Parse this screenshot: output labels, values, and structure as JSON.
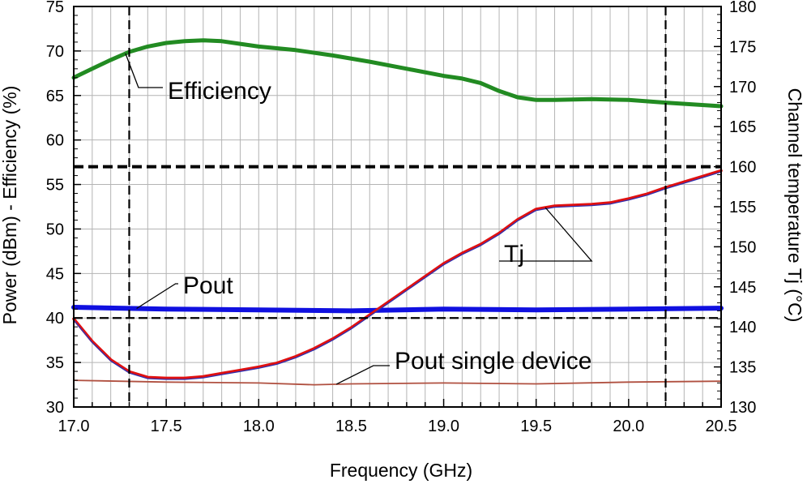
{
  "chart_data": {
    "type": "line",
    "xlabel": "Frequency (GHz)",
    "ylabel_left": "Power (dBm) - Efficiency (%)",
    "ylabel_right": "Channel temperature Tj (°C)",
    "xlim": [
      17.0,
      20.5
    ],
    "ylim_left": [
      30,
      75
    ],
    "ylim_right": [
      130,
      180
    ],
    "x_ticks": [
      "17.0",
      "17.5",
      "18.0",
      "18.5",
      "19.0",
      "19.5",
      "20.0",
      "20.5"
    ],
    "y_left_ticks": [
      "30",
      "35",
      "40",
      "45",
      "50",
      "55",
      "60",
      "65",
      "70",
      "75"
    ],
    "y_right_ticks": [
      "130",
      "135",
      "140",
      "145",
      "150",
      "155",
      "160",
      "165",
      "170",
      "175",
      "180"
    ],
    "grid": true,
    "series": [
      {
        "name": "Efficiency",
        "axis": "left",
        "color": "#228b22",
        "x": [
          17.0,
          17.1,
          17.2,
          17.3,
          17.4,
          17.5,
          17.6,
          17.7,
          17.8,
          17.9,
          18.0,
          18.2,
          18.4,
          18.6,
          18.8,
          19.0,
          19.1,
          19.2,
          19.3,
          19.4,
          19.5,
          19.6,
          19.8,
          20.0,
          20.2,
          20.5
        ],
        "y": [
          67.0,
          68.0,
          69.0,
          69.9,
          70.5,
          70.9,
          71.1,
          71.2,
          71.1,
          70.8,
          70.5,
          70.1,
          69.5,
          68.8,
          68.0,
          67.2,
          66.9,
          66.4,
          65.5,
          64.8,
          64.5,
          64.5,
          64.6,
          64.5,
          64.2,
          63.8
        ]
      },
      {
        "name": "Pout",
        "axis": "left",
        "color": "#1010e0",
        "x": [
          17.0,
          17.5,
          18.0,
          18.5,
          19.0,
          19.5,
          20.0,
          20.5
        ],
        "y": [
          41.2,
          41.0,
          40.9,
          40.8,
          41.0,
          40.9,
          41.0,
          41.1
        ]
      },
      {
        "name": "Tj",
        "axis": "right",
        "color": "#e01010",
        "x": [
          17.0,
          17.1,
          17.2,
          17.3,
          17.4,
          17.5,
          17.6,
          17.7,
          17.8,
          17.9,
          18.0,
          18.1,
          18.2,
          18.3,
          18.4,
          18.5,
          18.6,
          18.7,
          18.8,
          18.9,
          19.0,
          19.1,
          19.2,
          19.3,
          19.4,
          19.5,
          19.6,
          19.7,
          19.8,
          19.9,
          20.0,
          20.1,
          20.2,
          20.3,
          20.4,
          20.5
        ],
        "y": [
          141.0,
          138.2,
          135.9,
          134.4,
          133.7,
          133.6,
          133.6,
          133.8,
          134.2,
          134.6,
          135.0,
          135.5,
          136.3,
          137.3,
          138.5,
          139.9,
          141.5,
          143.1,
          144.7,
          146.3,
          147.9,
          149.2,
          150.3,
          151.7,
          153.4,
          154.7,
          155.1,
          155.2,
          155.3,
          155.5,
          156.0,
          156.6,
          157.4,
          158.1,
          158.8,
          159.5
        ]
      },
      {
        "name": "Pout single device",
        "axis": "left",
        "color": "#b05040",
        "x": [
          17.0,
          17.5,
          18.0,
          18.3,
          18.5,
          19.0,
          19.5,
          20.0,
          20.5
        ],
        "y": [
          33.0,
          32.8,
          32.7,
          32.5,
          32.6,
          32.7,
          32.6,
          32.8,
          32.9
        ]
      }
    ],
    "reference_lines": [
      {
        "orientation": "vertical",
        "axis": "x",
        "value": 17.3
      },
      {
        "orientation": "vertical",
        "axis": "x",
        "value": 20.2
      },
      {
        "orientation": "horizontal",
        "axis": "left",
        "value": 40
      },
      {
        "orientation": "horizontal",
        "axis": "right",
        "value": 160
      }
    ],
    "annotations": [
      {
        "text": "Efficiency",
        "target": "Efficiency"
      },
      {
        "text": "Pout",
        "target": "Pout"
      },
      {
        "text": "Tj",
        "target": "Tj"
      },
      {
        "text": "Pout single device",
        "target": "Pout single device"
      }
    ]
  }
}
